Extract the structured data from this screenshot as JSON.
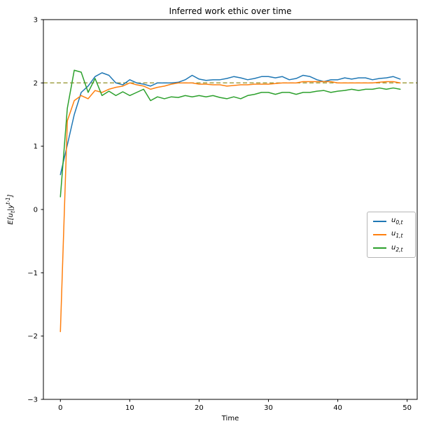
{
  "chart_data": {
    "type": "line",
    "title": "Inferred work ethic over time",
    "xlabel": "Time",
    "ylabel": "E[u_{t}|y^{t-1}]",
    "xlim": [
      -2.45,
      51.45
    ],
    "ylim": [
      -3,
      3
    ],
    "xticks": [
      0,
      10,
      20,
      30,
      40,
      50
    ],
    "yticks": [
      -3,
      -2,
      -1,
      0,
      1,
      2,
      3
    ],
    "grid": false,
    "legend_position": "center right",
    "reference_line": {
      "y": 2.0,
      "style": "dashed",
      "color": "#9a9a3a"
    },
    "x": [
      0,
      1,
      2,
      3,
      4,
      5,
      6,
      7,
      8,
      9,
      10,
      11,
      12,
      13,
      14,
      15,
      16,
      17,
      18,
      19,
      20,
      21,
      22,
      23,
      24,
      25,
      26,
      27,
      28,
      29,
      30,
      31,
      32,
      33,
      34,
      35,
      36,
      37,
      38,
      39,
      40,
      41,
      42,
      43,
      44,
      45,
      46,
      47,
      48,
      49
    ],
    "series": [
      {
        "name": "u0",
        "label": "u_{0,t}",
        "color": "#1f77b4",
        "values": [
          0.55,
          1.02,
          1.5,
          1.85,
          1.95,
          2.1,
          2.16,
          2.12,
          2.0,
          1.97,
          2.05,
          2.0,
          1.98,
          1.95,
          2.0,
          2.0,
          2.0,
          2.01,
          2.05,
          2.12,
          2.06,
          2.04,
          2.05,
          2.05,
          2.07,
          2.1,
          2.08,
          2.05,
          2.07,
          2.1,
          2.1,
          2.08,
          2.1,
          2.05,
          2.07,
          2.12,
          2.1,
          2.05,
          2.02,
          2.05,
          2.05,
          2.08,
          2.06,
          2.08,
          2.08,
          2.05,
          2.07,
          2.08,
          2.1,
          2.06
        ]
      },
      {
        "name": "u1",
        "label": "u_{1,t}",
        "color": "#ff7f0e",
        "values": [
          -1.93,
          1.4,
          1.72,
          1.8,
          1.75,
          1.88,
          1.85,
          1.9,
          1.93,
          1.95,
          2.0,
          1.97,
          1.95,
          1.9,
          1.93,
          1.95,
          1.98,
          2.0,
          2.0,
          2.0,
          1.98,
          1.98,
          1.97,
          1.97,
          1.95,
          1.96,
          1.97,
          1.97,
          1.98,
          1.98,
          1.98,
          1.99,
          2.0,
          2.0,
          2.0,
          2.02,
          2.02,
          2.02,
          2.02,
          2.02,
          2.0,
          2.0,
          2.0,
          2.0,
          2.0,
          2.0,
          2.01,
          2.02,
          2.02,
          2.0
        ]
      },
      {
        "name": "u2",
        "label": "u_{2,t}",
        "color": "#2ca02c",
        "values": [
          0.2,
          1.6,
          2.2,
          2.17,
          1.85,
          2.07,
          1.8,
          1.87,
          1.8,
          1.86,
          1.8,
          1.85,
          1.9,
          1.72,
          1.78,
          1.75,
          1.78,
          1.77,
          1.8,
          1.78,
          1.8,
          1.78,
          1.8,
          1.77,
          1.75,
          1.78,
          1.75,
          1.8,
          1.82,
          1.85,
          1.85,
          1.82,
          1.85,
          1.85,
          1.82,
          1.85,
          1.85,
          1.87,
          1.88,
          1.85,
          1.87,
          1.88,
          1.9,
          1.88,
          1.9,
          1.9,
          1.92,
          1.9,
          1.92,
          1.9
        ]
      }
    ]
  }
}
